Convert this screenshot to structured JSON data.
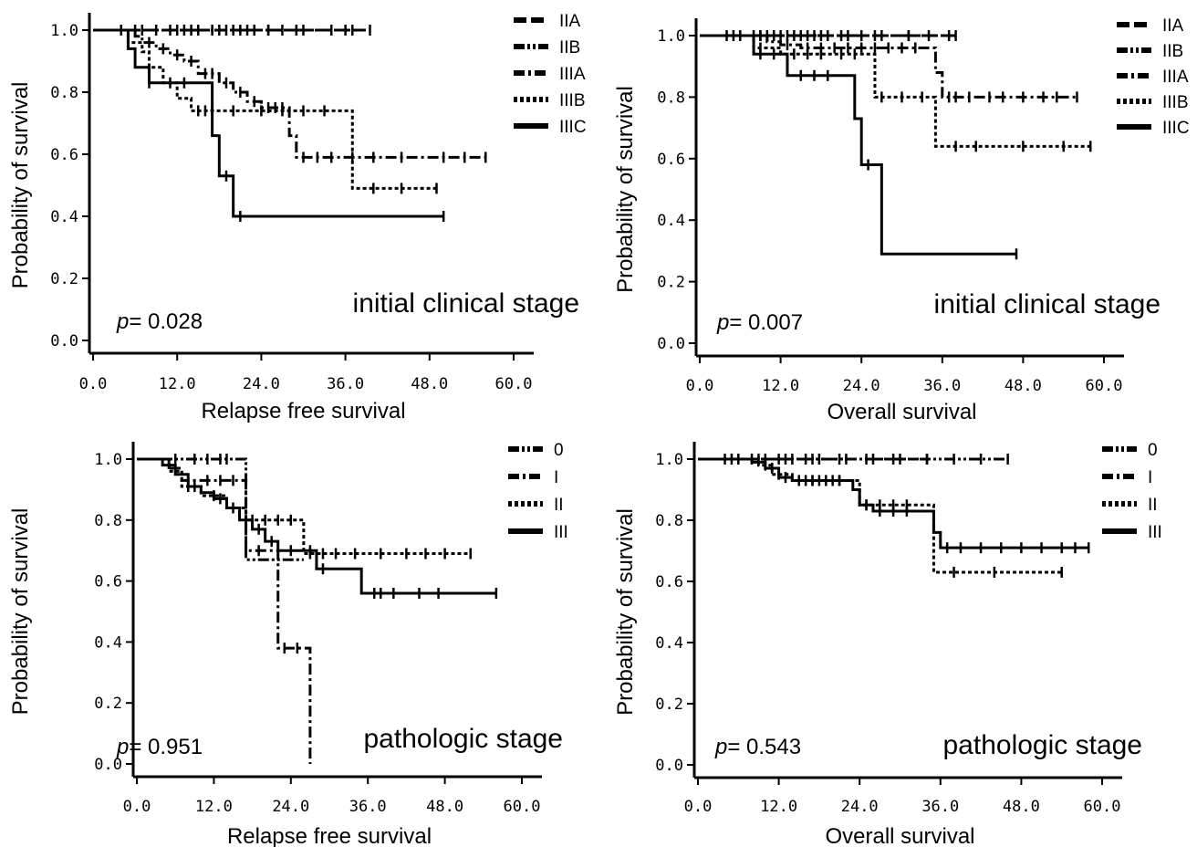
{
  "chart_data": [
    {
      "type": "line",
      "step": true,
      "xlabel": "Relapse free survival",
      "ylabel": "Probability of survival",
      "xticks": [
        "0.0",
        "12.0",
        "24.0",
        "36.0",
        "48.0",
        "60.0"
      ],
      "yticks": [
        "0.0",
        "0.2",
        "0.4",
        "0.6",
        "0.8",
        "1.0"
      ],
      "xlim": [
        0,
        60
      ],
      "ylim": [
        0,
        1
      ],
      "annotation": "initial clinical stage",
      "p_value": {
        "label": "p",
        "eq": "= 0.028"
      },
      "legend_position": "right",
      "series": [
        {
          "name": "IIA",
          "dash": "long",
          "points": [
            [
              0,
              1.0
            ],
            [
              39.5,
              1.0
            ]
          ],
          "censor": [
            7,
            11,
            13,
            14,
            15,
            17,
            18,
            19,
            21,
            22,
            23,
            25,
            27,
            29,
            34,
            36,
            39.5
          ]
        },
        {
          "name": "IIB",
          "dash": "dashdotdot",
          "points": [
            [
              0,
              1.0
            ],
            [
              37,
              1.0
            ]
          ],
          "censor": [
            4,
            6,
            9,
            12,
            15,
            20,
            25,
            30,
            34,
            37
          ]
        },
        {
          "name": "IIIA",
          "dash": "dashdot",
          "points": [
            [
              0,
              1.0
            ],
            [
              6,
              0.98
            ],
            [
              7,
              0.96
            ],
            [
              9,
              0.94
            ],
            [
              11,
              0.92
            ],
            [
              13,
              0.9
            ],
            [
              15,
              0.86
            ],
            [
              18,
              0.83
            ],
            [
              20,
              0.8
            ],
            [
              22,
              0.77
            ],
            [
              24,
              0.75
            ],
            [
              28,
              0.66
            ],
            [
              29,
              0.59
            ],
            [
              56,
              0.59
            ]
          ],
          "censor": [
            8,
            10,
            12,
            14,
            16,
            17,
            19,
            21,
            23,
            25,
            26,
            27,
            30,
            32,
            34,
            37,
            40,
            44,
            50,
            53,
            56
          ]
        },
        {
          "name": "IIIB",
          "dash": "dotted",
          "points": [
            [
              0,
              1.0
            ],
            [
              5,
              0.96
            ],
            [
              7,
              0.93
            ],
            [
              8,
              0.88
            ],
            [
              10,
              0.83
            ],
            [
              12,
              0.78
            ],
            [
              14,
              0.74
            ],
            [
              37,
              0.74
            ],
            [
              37,
              0.49
            ],
            [
              49,
              0.49
            ]
          ],
          "censor": [
            15,
            16,
            17,
            20,
            24,
            27,
            30,
            33,
            40,
            44,
            49
          ]
        },
        {
          "name": "IIIC",
          "dash": "solid",
          "points": [
            [
              0,
              1.0
            ],
            [
              5,
              0.94
            ],
            [
              6,
              0.88
            ],
            [
              8,
              0.83
            ],
            [
              17,
              0.83
            ],
            [
              17,
              0.66
            ],
            [
              18,
              0.53
            ],
            [
              20,
              0.53
            ],
            [
              20,
              0.4
            ],
            [
              50,
              0.4
            ]
          ],
          "censor": [
            8,
            11,
            13,
            19,
            21,
            50
          ]
        }
      ]
    },
    {
      "type": "line",
      "step": true,
      "xlabel": "Overall survival",
      "ylabel": "Probability of survival",
      "xticks": [
        "0.0",
        "12.0",
        "24.0",
        "36.0",
        "48.0",
        "60.0"
      ],
      "yticks": [
        "0.0",
        "0.2",
        "0.4",
        "0.6",
        "0.8",
        "1.0"
      ],
      "xlim": [
        0,
        60
      ],
      "ylim": [
        0,
        1
      ],
      "annotation": "initial clinical stage",
      "p_value": {
        "label": "p",
        "eq": "= 0.007"
      },
      "legend_position": "right",
      "series": [
        {
          "name": "IIA",
          "dash": "long",
          "points": [
            [
              0,
              1.0
            ],
            [
              38,
              1.0
            ]
          ],
          "censor": [
            4,
            6,
            8,
            10,
            11,
            13,
            14,
            16,
            17,
            19,
            21,
            24,
            27,
            31,
            34,
            38
          ]
        },
        {
          "name": "IIB",
          "dash": "dashdotdot",
          "points": [
            [
              0,
              1.0
            ],
            [
              37,
              1.0
            ]
          ],
          "censor": [
            5,
            9,
            12,
            15,
            18,
            22,
            26,
            31,
            37
          ]
        },
        {
          "name": "IIIA",
          "dash": "dashdot",
          "points": [
            [
              0,
              1.0
            ],
            [
              10,
              0.98
            ],
            [
              12,
              0.97
            ],
            [
              15,
              0.96
            ],
            [
              34,
              0.96
            ],
            [
              35,
              0.88
            ],
            [
              36,
              0.8
            ],
            [
              56,
              0.8
            ]
          ],
          "censor": [
            9,
            13,
            16,
            18,
            20,
            22,
            24,
            26,
            28,
            30,
            32,
            37,
            38,
            40,
            43,
            45,
            48,
            51,
            53,
            56
          ]
        },
        {
          "name": "IIIB",
          "dash": "dotted",
          "points": [
            [
              0,
              1.0
            ],
            [
              8,
              0.96
            ],
            [
              12,
              0.94
            ],
            [
              24,
              0.94
            ],
            [
              26,
              0.8
            ],
            [
              35,
              0.8
            ],
            [
              35,
              0.64
            ],
            [
              58,
              0.64
            ]
          ],
          "censor": [
            9,
            14,
            16,
            18,
            21,
            23,
            27,
            30,
            33,
            38,
            41,
            48,
            54,
            58
          ]
        },
        {
          "name": "IIIC",
          "dash": "solid",
          "points": [
            [
              0,
              1.0
            ],
            [
              8,
              1.0
            ],
            [
              8,
              0.94
            ],
            [
              13,
              0.94
            ],
            [
              13,
              0.87
            ],
            [
              22,
              0.87
            ],
            [
              23,
              0.73
            ],
            [
              24,
              0.58
            ],
            [
              26,
              0.58
            ],
            [
              27,
              0.29
            ],
            [
              47,
              0.29
            ]
          ],
          "censor": [
            9,
            11,
            15,
            17,
            19,
            25,
            47
          ]
        }
      ]
    },
    {
      "type": "line",
      "step": true,
      "xlabel": "Relapse free survival",
      "ylabel": "Probability of survival",
      "xticks": [
        "0.0",
        "12.0",
        "24.0",
        "36.0",
        "48.0",
        "60.0"
      ],
      "yticks": [
        "0.0",
        "0.2",
        "0.4",
        "0.6",
        "0.8",
        "1.0"
      ],
      "xlim": [
        0,
        60
      ],
      "ylim": [
        0,
        1
      ],
      "annotation": "pathologic stage",
      "p_value": {
        "label": "p",
        "eq": "= 0.951"
      },
      "legend_position": "right",
      "series": [
        {
          "name": "0",
          "dash": "dashdotdot",
          "points": [
            [
              0,
              1.0
            ],
            [
              16,
              1.0
            ],
            [
              17,
              0.67
            ],
            [
              26,
              0.67
            ]
          ],
          "censor": [
            6,
            9,
            11,
            13,
            14
          ]
        },
        {
          "name": "I",
          "dash": "dashdot",
          "points": [
            [
              0,
              1.0
            ],
            [
              5,
              0.97
            ],
            [
              7,
              0.93
            ],
            [
              16,
              0.93
            ],
            [
              17,
              0.7
            ],
            [
              21,
              0.7
            ],
            [
              22,
              0.38
            ],
            [
              26,
              0.38
            ],
            [
              27,
              0.0
            ]
          ],
          "censor": [
            8,
            11,
            13,
            15,
            19,
            23,
            25
          ]
        },
        {
          "name": "II",
          "dash": "dotted",
          "points": [
            [
              0,
              1.0
            ],
            [
              5,
              0.96
            ],
            [
              7,
              0.91
            ],
            [
              10,
              0.88
            ],
            [
              14,
              0.84
            ],
            [
              17,
              0.8
            ],
            [
              25,
              0.8
            ],
            [
              26,
              0.69
            ],
            [
              52,
              0.69
            ]
          ],
          "censor": [
            8,
            12,
            18,
            20,
            22,
            24,
            27,
            29,
            31,
            34,
            38,
            42,
            45,
            48,
            52
          ]
        },
        {
          "name": "III",
          "dash": "solid",
          "points": [
            [
              0,
              1.0
            ],
            [
              4,
              0.98
            ],
            [
              6,
              0.95
            ],
            [
              8,
              0.91
            ],
            [
              10,
              0.89
            ],
            [
              12,
              0.87
            ],
            [
              14,
              0.84
            ],
            [
              16,
              0.8
            ],
            [
              18,
              0.77
            ],
            [
              20,
              0.73
            ],
            [
              22,
              0.7
            ],
            [
              26,
              0.7
            ],
            [
              28,
              0.64
            ],
            [
              34,
              0.64
            ],
            [
              35,
              0.56
            ],
            [
              56,
              0.56
            ]
          ],
          "censor": [
            9,
            13,
            15,
            17,
            19,
            21,
            24,
            27,
            29,
            37,
            38,
            40,
            44,
            47,
            56
          ]
        }
      ]
    },
    {
      "type": "line",
      "step": true,
      "xlabel": "Overall survival",
      "ylabel": "Probability of survival",
      "xticks": [
        "0.0",
        "12.0",
        "24.0",
        "36.0",
        "48.0",
        "60.0"
      ],
      "yticks": [
        "0.0",
        "0.2",
        "0.4",
        "0.6",
        "0.8",
        "1.0"
      ],
      "xlim": [
        0,
        60
      ],
      "ylim": [
        0,
        1
      ],
      "annotation": "pathologic stage",
      "p_value": {
        "label": "p",
        "eq": "= 0.543"
      },
      "legend_position": "right",
      "series": [
        {
          "name": "0",
          "dash": "dashdotdot",
          "points": [
            [
              0,
              1.0
            ],
            [
              46,
              1.0
            ]
          ],
          "censor": [
            4,
            6,
            8,
            10,
            12,
            14,
            16,
            18,
            22,
            26,
            30,
            34,
            38,
            42,
            46
          ]
        },
        {
          "name": "I",
          "dash": "dashdot",
          "points": [
            [
              0,
              1.0
            ],
            [
              34,
              1.0
            ]
          ],
          "censor": [
            5,
            9,
            13,
            17,
            21,
            25,
            29,
            34
          ]
        },
        {
          "name": "II",
          "dash": "dotted",
          "points": [
            [
              0,
              1.0
            ],
            [
              9,
              0.98
            ],
            [
              11,
              0.95
            ],
            [
              14,
              0.93
            ],
            [
              23,
              0.93
            ],
            [
              24,
              0.85
            ],
            [
              34,
              0.85
            ],
            [
              35,
              0.63
            ],
            [
              54,
              0.63
            ]
          ],
          "censor": [
            10,
            12,
            15,
            17,
            19,
            21,
            25,
            27,
            29,
            31,
            38,
            44,
            54
          ]
        },
        {
          "name": "III",
          "dash": "solid",
          "points": [
            [
              0,
              1.0
            ],
            [
              8,
              0.99
            ],
            [
              10,
              0.97
            ],
            [
              12,
              0.94
            ],
            [
              14,
              0.93
            ],
            [
              22,
              0.93
            ],
            [
              23,
              0.9
            ],
            [
              24,
              0.85
            ],
            [
              26,
              0.83
            ],
            [
              34,
              0.83
            ],
            [
              35,
              0.76
            ],
            [
              36,
              0.71
            ],
            [
              58,
              0.71
            ]
          ],
          "censor": [
            11,
            13,
            15,
            16,
            17,
            18,
            19,
            20,
            21,
            25,
            27,
            29,
            31,
            37,
            39,
            42,
            45,
            48,
            51,
            54,
            56,
            58
          ]
        }
      ]
    }
  ],
  "style": {
    "line_color": "#000000",
    "background": "#ffffff"
  }
}
